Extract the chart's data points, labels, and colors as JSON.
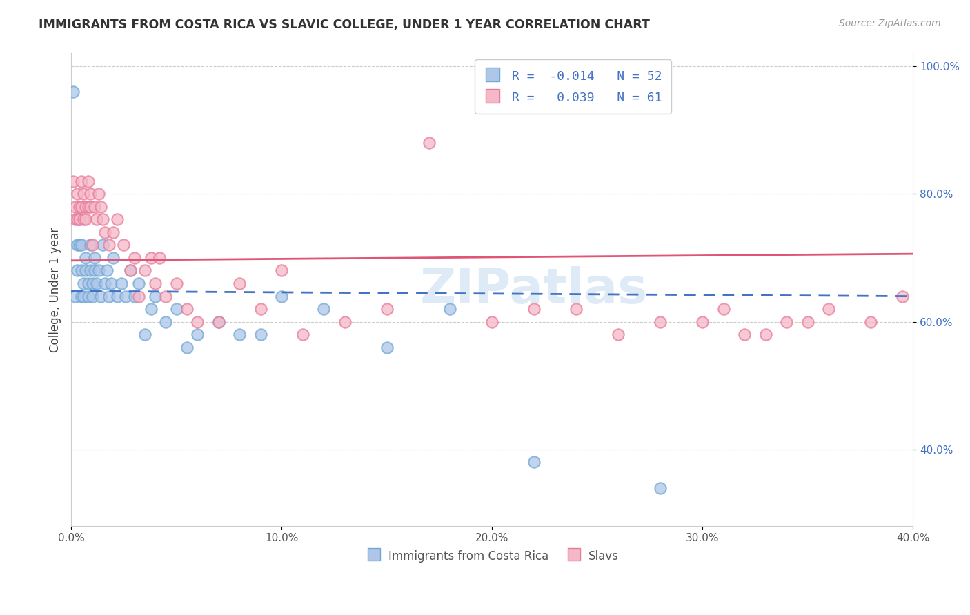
{
  "title": "IMMIGRANTS FROM COSTA RICA VS SLAVIC COLLEGE, UNDER 1 YEAR CORRELATION CHART",
  "source": "Source: ZipAtlas.com",
  "ylabel": "College, Under 1 year",
  "xlabel": "",
  "xlim": [
    0.0,
    0.4
  ],
  "ylim": [
    0.28,
    1.02
  ],
  "yticks": [
    0.4,
    0.6,
    0.8,
    1.0
  ],
  "ytick_labels": [
    "40.0%",
    "60.0%",
    "80.0%",
    "100.0%"
  ],
  "xticks": [
    0.0,
    0.1,
    0.2,
    0.3,
    0.4
  ],
  "xtick_labels": [
    "0.0%",
    "10.0%",
    "20.0%",
    "30.0%",
    "40.0%"
  ],
  "legend_labels": [
    "Immigrants from Costa Rica",
    "Slavs"
  ],
  "blue_color": "#aec6e8",
  "pink_color": "#f5b8c8",
  "blue_edge": "#6fa8d6",
  "pink_edge": "#e87a9a",
  "trend_blue": "#4472c4",
  "trend_pink": "#e05575",
  "R_blue": -0.014,
  "N_blue": 52,
  "R_pink": 0.039,
  "N_pink": 61,
  "blue_x": [
    0.001,
    0.002,
    0.003,
    0.003,
    0.004,
    0.004,
    0.005,
    0.005,
    0.005,
    0.006,
    0.006,
    0.007,
    0.007,
    0.008,
    0.008,
    0.009,
    0.009,
    0.01,
    0.01,
    0.011,
    0.011,
    0.012,
    0.013,
    0.014,
    0.015,
    0.016,
    0.017,
    0.018,
    0.019,
    0.02,
    0.022,
    0.024,
    0.026,
    0.028,
    0.03,
    0.032,
    0.035,
    0.038,
    0.04,
    0.045,
    0.05,
    0.055,
    0.06,
    0.07,
    0.08,
    0.09,
    0.1,
    0.12,
    0.15,
    0.18,
    0.22,
    0.28
  ],
  "blue_y": [
    0.96,
    0.64,
    0.72,
    0.68,
    0.76,
    0.72,
    0.64,
    0.68,
    0.72,
    0.66,
    0.64,
    0.68,
    0.7,
    0.66,
    0.64,
    0.68,
    0.72,
    0.64,
    0.66,
    0.68,
    0.7,
    0.66,
    0.68,
    0.64,
    0.72,
    0.66,
    0.68,
    0.64,
    0.66,
    0.7,
    0.64,
    0.66,
    0.64,
    0.68,
    0.64,
    0.66,
    0.58,
    0.62,
    0.64,
    0.6,
    0.62,
    0.56,
    0.58,
    0.6,
    0.58,
    0.58,
    0.64,
    0.62,
    0.56,
    0.62,
    0.38,
    0.34
  ],
  "pink_x": [
    0.001,
    0.002,
    0.002,
    0.003,
    0.003,
    0.004,
    0.004,
    0.005,
    0.005,
    0.006,
    0.006,
    0.007,
    0.007,
    0.008,
    0.008,
    0.009,
    0.009,
    0.01,
    0.011,
    0.012,
    0.013,
    0.014,
    0.015,
    0.016,
    0.018,
    0.02,
    0.022,
    0.025,
    0.028,
    0.03,
    0.032,
    0.035,
    0.038,
    0.04,
    0.042,
    0.045,
    0.05,
    0.055,
    0.06,
    0.07,
    0.08,
    0.09,
    0.1,
    0.11,
    0.13,
    0.15,
    0.17,
    0.2,
    0.22,
    0.24,
    0.26,
    0.28,
    0.3,
    0.31,
    0.32,
    0.33,
    0.34,
    0.35,
    0.36,
    0.38,
    0.395
  ],
  "pink_y": [
    0.82,
    0.78,
    0.76,
    0.8,
    0.76,
    0.76,
    0.78,
    0.78,
    0.82,
    0.76,
    0.8,
    0.78,
    0.76,
    0.78,
    0.82,
    0.8,
    0.78,
    0.72,
    0.78,
    0.76,
    0.8,
    0.78,
    0.76,
    0.74,
    0.72,
    0.74,
    0.76,
    0.72,
    0.68,
    0.7,
    0.64,
    0.68,
    0.7,
    0.66,
    0.7,
    0.64,
    0.66,
    0.62,
    0.6,
    0.6,
    0.66,
    0.62,
    0.68,
    0.58,
    0.6,
    0.62,
    0.88,
    0.6,
    0.62,
    0.62,
    0.58,
    0.6,
    0.6,
    0.62,
    0.58,
    0.58,
    0.6,
    0.6,
    0.62,
    0.6,
    0.64
  ],
  "watermark": "ZIPatlas",
  "background_color": "#ffffff",
  "grid_color": "#cccccc",
  "tick_color": "#4472c4",
  "spine_color": "#cccccc"
}
